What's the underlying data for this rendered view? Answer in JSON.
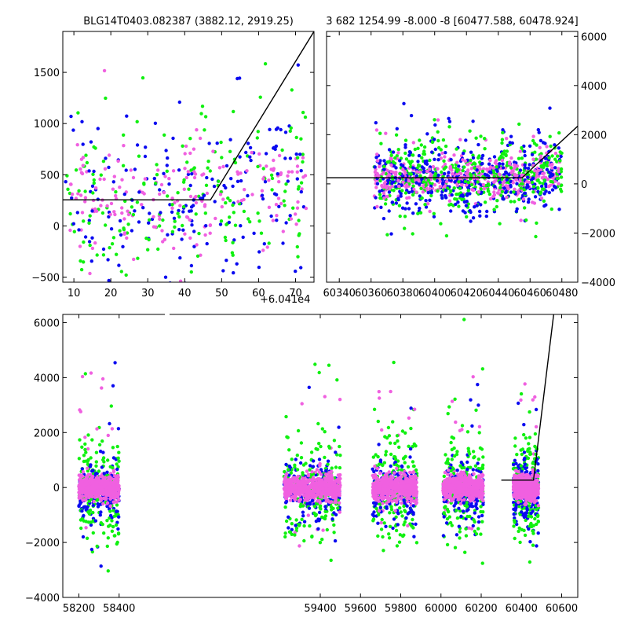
{
  "figure": {
    "top_left_title": "BLG14T0403.082387 (3882.12, 2919.25)",
    "top_right_title": "3 682 1254.99 -8.000 -8 [60477.588, 60478.924]",
    "offset_label": "+6.041e4"
  },
  "colors": {
    "blue": "#0a0af0",
    "green": "#10f010",
    "magenta": "#f060e0",
    "line": "#000000",
    "frame": "#000000"
  },
  "chart_data": [
    {
      "id": "top-left",
      "type": "scatter",
      "title": "BLG14T0403.082387 (3882.12, 2919.25)",
      "xlabel": "",
      "ylabel": "",
      "x_offset": 60410,
      "xlim": [
        7,
        75
      ],
      "ylim": [
        -550,
        1900
      ],
      "xticks": [
        10,
        20,
        30,
        40,
        50,
        60,
        70
      ],
      "yticks": [
        -500,
        0,
        500,
        1000,
        1500
      ],
      "yaxis_side": "left",
      "scatter_model": {
        "x_start": 7,
        "x_end": 73,
        "y_center": 250,
        "y_spread": 450,
        "ramp_from": 35,
        "ramp_gain": 8
      },
      "model_line": {
        "x": [
          7,
          47,
          75
        ],
        "y": [
          255,
          255,
          1900
        ]
      },
      "grid": false
    },
    {
      "id": "top-right",
      "type": "scatter",
      "title": "3 682 1254.99 -8.000 -8 [60477.588, 60478.924]",
      "xlabel": "",
      "ylabel": "",
      "xlim": [
        60332,
        60490
      ],
      "ylim": [
        -4000,
        6200
      ],
      "xticks": [
        60340,
        60360,
        60380,
        60400,
        60420,
        60440,
        60460,
        60480
      ],
      "yticks": [
        -4000,
        -2000,
        0,
        2000,
        4000,
        6000
      ],
      "yaxis_side": "right",
      "scatter_model": {
        "x_start": 60362,
        "x_end": 60480,
        "y_center": 200,
        "y_spread": 700,
        "ramp_from": 60455,
        "ramp_gain": 30
      },
      "model_line": {
        "x": [
          60332,
          60455,
          60490
        ],
        "y": [
          250,
          250,
          2350
        ]
      },
      "grid": false
    },
    {
      "id": "bottom",
      "type": "scatter",
      "title": "",
      "xlabel": "",
      "ylabel": "",
      "xlim": [
        58120,
        60680
      ],
      "ylim": [
        -4000,
        6300
      ],
      "xticks": [
        58200,
        58400,
        59400,
        59600,
        59800,
        60000,
        60200,
        60400,
        60600
      ],
      "tick_labels": [
        "58200",
        "58400",
        "59400",
        "59600",
        "59800",
        "60000",
        "60200",
        "60400",
        "60600"
      ],
      "yticks": [
        -4000,
        -2000,
        0,
        2000,
        4000,
        6000
      ],
      "yaxis_side": "left",
      "segments": [
        [
          58200,
          58400
        ],
        [
          59220,
          59500
        ],
        [
          59660,
          59880
        ],
        [
          60010,
          60210
        ],
        [
          60360,
          60485
        ]
      ],
      "model_line": {
        "x": [
          60300,
          60460,
          60560
        ],
        "y": [
          270,
          270,
          6300
        ]
      },
      "grid": false
    }
  ]
}
